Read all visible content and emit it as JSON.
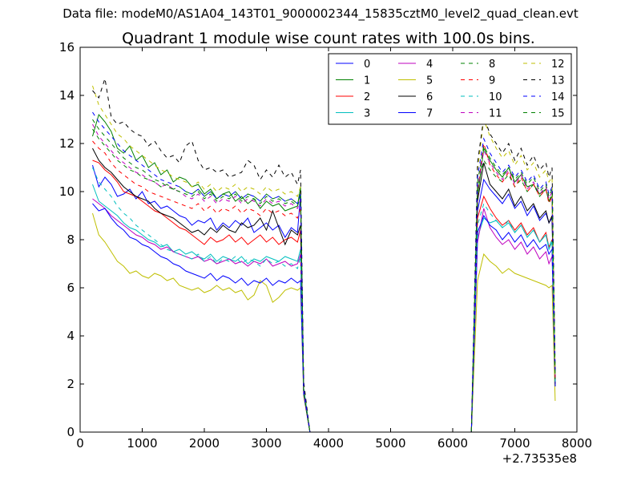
{
  "suptitle": "Data file: modeM0/AS1A04_143T01_9000002344_15835cztM0_level2_quad_clean.evt",
  "chart_data": {
    "type": "line",
    "title": "Quadrant 1 module wise count rates with 100.0s bins.",
    "xlabel": "",
    "ylabel": "",
    "x_offset_label": "+2.73535e8",
    "xlim": [
      0,
      8000
    ],
    "ylim": [
      0,
      16
    ],
    "xticks": [
      0,
      1000,
      2000,
      3000,
      4000,
      5000,
      6000,
      7000,
      8000
    ],
    "yticks": [
      0,
      2,
      4,
      6,
      8,
      10,
      12,
      14,
      16
    ],
    "grid": false,
    "legend_position": "top-right",
    "legend_columns": 4,
    "x": [
      200,
      300,
      400,
      500,
      600,
      700,
      800,
      900,
      1000,
      1100,
      1200,
      1300,
      1400,
      1500,
      1600,
      1700,
      1800,
      1900,
      2000,
      2100,
      2200,
      2300,
      2400,
      2500,
      2600,
      2700,
      2800,
      2900,
      3000,
      3100,
      3200,
      3300,
      3400,
      3500,
      3550,
      3600,
      3700,
      3800,
      4000,
      4500,
      5000,
      5500,
      6000,
      6300,
      6400,
      6500,
      6600,
      6700,
      6800,
      6900,
      7000,
      7100,
      7200,
      7300,
      7400,
      7500,
      7550,
      7600,
      7650
    ],
    "series": [
      {
        "name": "0",
        "color": "#0000ff",
        "dash": "solid",
        "values": [
          11.1,
          10.2,
          10.6,
          10.3,
          9.8,
          9.9,
          10.1,
          9.7,
          10.0,
          9.5,
          9.6,
          9.3,
          9.4,
          9.2,
          9.0,
          8.9,
          8.6,
          8.8,
          8.7,
          8.9,
          8.4,
          8.7,
          8.5,
          8.8,
          8.6,
          8.9,
          8.3,
          8.5,
          8.7,
          8.4,
          8.6,
          8.1,
          8.5,
          8.3,
          9.9,
          1.8,
          0,
          0,
          0,
          0,
          0,
          0,
          0,
          0,
          9.2,
          10.5,
          10.1,
          9.8,
          9.5,
          9.9,
          9.3,
          9.6,
          9.0,
          9.4,
          8.8,
          9.1,
          8.7,
          8.9,
          1.9
        ]
      },
      {
        "name": "1",
        "color": "#008000",
        "dash": "solid",
        "values": [
          12.3,
          13.2,
          12.9,
          12.5,
          11.8,
          11.6,
          11.9,
          11.3,
          11.5,
          11.0,
          11.2,
          10.7,
          10.9,
          10.4,
          10.6,
          10.5,
          10.2,
          10.3,
          9.9,
          10.1,
          9.7,
          9.9,
          10.0,
          9.6,
          9.8,
          9.5,
          9.7,
          9.3,
          9.6,
          9.4,
          9.5,
          9.2,
          9.3,
          9.4,
          10.2,
          1.6,
          0,
          0,
          0,
          0,
          0,
          0,
          0,
          0,
          9.8,
          11.8,
          11.3,
          10.9,
          10.6,
          11.0,
          10.4,
          10.7,
          10.2,
          10.3,
          9.9,
          10.1,
          9.6,
          9.8,
          2.1
        ]
      },
      {
        "name": "2",
        "color": "#ff0000",
        "dash": "solid",
        "values": [
          11.3,
          11.2,
          10.9,
          10.7,
          10.4,
          10.0,
          9.9,
          9.8,
          9.6,
          9.4,
          9.2,
          9.1,
          8.9,
          8.7,
          8.5,
          8.4,
          8.2,
          8.0,
          7.8,
          8.1,
          7.9,
          8.0,
          8.2,
          7.9,
          8.1,
          7.8,
          8.0,
          8.2,
          7.9,
          8.1,
          7.8,
          8.0,
          8.1,
          7.9,
          8.4,
          1.7,
          0,
          0,
          0,
          0,
          0,
          0,
          0,
          0,
          8.9,
          9.8,
          9.3,
          8.9,
          8.6,
          8.8,
          8.4,
          8.7,
          8.2,
          8.5,
          7.9,
          8.3,
          7.7,
          8.0,
          2.0
        ]
      },
      {
        "name": "3",
        "color": "#00bfbf",
        "dash": "solid",
        "values": [
          10.3,
          9.6,
          9.4,
          9.2,
          9.0,
          8.7,
          8.5,
          8.4,
          8.2,
          8.0,
          7.9,
          7.7,
          7.8,
          7.5,
          7.6,
          7.4,
          7.5,
          7.3,
          7.2,
          7.4,
          7.1,
          7.3,
          7.2,
          7.1,
          7.3,
          7.0,
          7.2,
          7.1,
          7.3,
          7.2,
          7.1,
          7.3,
          7.2,
          7.1,
          7.6,
          1.8,
          0,
          0,
          0,
          0,
          0,
          0,
          0,
          0,
          8.1,
          8.9,
          8.7,
          8.8,
          8.5,
          8.7,
          8.3,
          8.6,
          8.1,
          8.4,
          7.9,
          8.2,
          7.6,
          7.9,
          2.2
        ]
      },
      {
        "name": "4",
        "color": "#bf00bf",
        "dash": "solid",
        "values": [
          9.7,
          9.5,
          9.3,
          9.0,
          8.8,
          8.6,
          8.4,
          8.2,
          8.1,
          7.9,
          7.8,
          7.6,
          7.7,
          7.5,
          7.4,
          7.3,
          7.2,
          7.3,
          7.1,
          7.2,
          7.0,
          7.1,
          7.2,
          7.0,
          7.1,
          6.9,
          7.1,
          7.0,
          7.2,
          6.9,
          7.0,
          7.1,
          6.9,
          7.0,
          7.4,
          1.7,
          0,
          0,
          0,
          0,
          0,
          0,
          0,
          0,
          7.9,
          9.3,
          8.5,
          8.1,
          7.8,
          8.0,
          7.6,
          7.9,
          7.4,
          7.7,
          7.2,
          7.5,
          7.0,
          7.3,
          2.1
        ]
      },
      {
        "name": "5",
        "color": "#bfbf00",
        "dash": "solid",
        "values": [
          9.1,
          8.2,
          7.9,
          7.5,
          7.1,
          6.9,
          6.6,
          6.7,
          6.5,
          6.4,
          6.6,
          6.5,
          6.3,
          6.4,
          6.1,
          6.0,
          5.9,
          6.0,
          5.8,
          5.9,
          6.1,
          5.9,
          6.0,
          5.8,
          5.9,
          5.5,
          5.7,
          6.3,
          6.1,
          5.4,
          5.6,
          5.9,
          6.0,
          5.9,
          6.0,
          1.5,
          0,
          0,
          0,
          0,
          0,
          0,
          0,
          0,
          6.3,
          7.4,
          7.1,
          6.9,
          6.6,
          6.8,
          6.6,
          6.5,
          6.4,
          6.3,
          6.2,
          6.1,
          6.0,
          6.1,
          1.3
        ]
      },
      {
        "name": "6",
        "color": "#000000",
        "dash": "solid",
        "values": [
          11.8,
          11.3,
          11.0,
          10.8,
          10.5,
          10.2,
          10.0,
          9.8,
          9.7,
          9.6,
          9.3,
          9.1,
          9.0,
          8.9,
          8.7,
          8.5,
          8.3,
          8.4,
          8.2,
          8.5,
          8.3,
          8.6,
          8.4,
          8.3,
          8.7,
          8.5,
          8.6,
          8.9,
          8.4,
          9.2,
          8.5,
          7.8,
          8.4,
          8.2,
          8.6,
          1.6,
          0,
          0,
          0,
          0,
          0,
          0,
          0,
          0,
          9.6,
          11.2,
          10.3,
          10.0,
          9.7,
          10.1,
          9.4,
          9.8,
          9.2,
          9.5,
          8.9,
          9.2,
          8.7,
          9.0,
          2.0
        ]
      },
      {
        "name": "7",
        "color": "#0000ff",
        "dash": "solid",
        "values": [
          9.5,
          9.2,
          9.3,
          8.9,
          8.6,
          8.4,
          8.1,
          8.0,
          7.8,
          7.7,
          7.5,
          7.3,
          7.2,
          7.0,
          6.9,
          6.7,
          6.6,
          6.5,
          6.4,
          6.6,
          6.3,
          6.5,
          6.4,
          6.2,
          6.4,
          6.1,
          6.3,
          6.2,
          6.4,
          6.1,
          6.3,
          6.2,
          6.4,
          6.2,
          6.3,
          1.6,
          0,
          0,
          0,
          0,
          0,
          0,
          0,
          0,
          8.3,
          9.0,
          8.6,
          8.4,
          8.0,
          8.3,
          7.9,
          8.2,
          7.7,
          8.0,
          7.6,
          7.8,
          7.4,
          7.6,
          1.9
        ]
      },
      {
        "name": "8",
        "color": "#008000",
        "dash": "dashed",
        "values": [
          12.6,
          12.2,
          11.9,
          11.6,
          11.3,
          11.1,
          10.9,
          10.8,
          10.6,
          10.5,
          10.4,
          10.2,
          10.3,
          10.1,
          10.2,
          10.0,
          9.9,
          10.1,
          9.8,
          10.0,
          9.7,
          9.9,
          9.8,
          10.0,
          9.7,
          9.9,
          9.8,
          9.6,
          9.9,
          9.7,
          9.8,
          9.6,
          9.7,
          9.5,
          9.9,
          1.8,
          0,
          0,
          0,
          0,
          0,
          0,
          0,
          0,
          10.2,
          11.3,
          10.9,
          10.6,
          10.4,
          10.7,
          10.2,
          10.5,
          10.0,
          10.3,
          9.8,
          10.1,
          9.6,
          9.9,
          2.3
        ]
      },
      {
        "name": "9",
        "color": "#ff0000",
        "dash": "dashed",
        "values": [
          12.1,
          11.8,
          11.6,
          11.2,
          10.9,
          10.7,
          10.5,
          10.3,
          10.2,
          10.0,
          9.9,
          9.8,
          9.7,
          9.6,
          9.5,
          9.4,
          9.3,
          9.5,
          9.2,
          9.4,
          9.1,
          9.3,
          9.2,
          9.4,
          9.1,
          9.3,
          9.2,
          9.0,
          9.3,
          9.1,
          9.2,
          9.0,
          9.1,
          8.9,
          9.3,
          1.7,
          0,
          0,
          0,
          0,
          0,
          0,
          0,
          0,
          10.0,
          12.0,
          11.1,
          10.7,
          10.4,
          10.8,
          10.2,
          10.6,
          10.0,
          10.3,
          9.8,
          10.1,
          9.5,
          9.8,
          2.2
        ]
      },
      {
        "name": "10",
        "color": "#00bfbf",
        "dash": "dashed",
        "values": [
          11.0,
          10.4,
          10.1,
          9.8,
          9.4,
          9.1,
          8.9,
          8.6,
          8.4,
          8.2,
          8.0,
          7.8,
          7.6,
          7.5,
          7.4,
          7.3,
          7.2,
          7.4,
          7.1,
          7.3,
          7.0,
          7.2,
          7.1,
          7.3,
          7.0,
          7.2,
          7.1,
          6.9,
          7.2,
          7.0,
          7.1,
          6.9,
          7.0,
          6.8,
          7.3,
          1.8,
          0,
          0,
          0,
          0,
          0,
          0,
          0,
          0,
          8.6,
          9.5,
          9.1,
          8.8,
          8.5,
          8.8,
          8.3,
          8.6,
          8.1,
          8.4,
          7.9,
          8.2,
          7.7,
          8.0,
          2.1
        ]
      },
      {
        "name": "11",
        "color": "#bf00bf",
        "dash": "dashed",
        "values": [
          12.8,
          12.3,
          12.0,
          11.7,
          11.4,
          11.2,
          11.0,
          10.8,
          10.7,
          10.5,
          10.4,
          10.2,
          10.3,
          10.1,
          10.0,
          9.8,
          9.7,
          9.9,
          9.6,
          9.8,
          9.5,
          9.7,
          9.6,
          9.8,
          9.5,
          9.7,
          9.6,
          9.4,
          9.7,
          9.5,
          9.6,
          9.4,
          9.5,
          9.3,
          9.7,
          1.7,
          0,
          0,
          0,
          0,
          0,
          0,
          0,
          0,
          10.1,
          11.7,
          11.2,
          10.8,
          10.5,
          10.9,
          10.3,
          10.7,
          10.1,
          10.4,
          9.9,
          10.2,
          9.7,
          10.0,
          2.3
        ]
      },
      {
        "name": "12",
        "color": "#bfbf00",
        "dash": "dashed",
        "values": [
          14.4,
          13.6,
          13.2,
          12.8,
          12.4,
          12.2,
          11.9,
          11.7,
          11.5,
          11.3,
          11.1,
          10.9,
          10.8,
          10.6,
          10.5,
          10.4,
          10.2,
          10.4,
          10.1,
          10.3,
          10.0,
          10.2,
          10.1,
          10.3,
          10.0,
          10.2,
          10.1,
          9.9,
          10.2,
          10.0,
          10.1,
          9.9,
          10.0,
          9.8,
          10.2,
          1.9,
          0,
          0,
          0,
          0,
          0,
          0,
          0,
          0,
          10.9,
          13.0,
          12.3,
          11.8,
          11.4,
          11.7,
          11.1,
          11.5,
          10.9,
          11.2,
          10.6,
          10.9,
          10.4,
          10.6,
          2.4
        ]
      },
      {
        "name": "13",
        "color": "#000000",
        "dash": "dashed",
        "values": [
          14.2,
          13.9,
          14.7,
          13.1,
          12.8,
          12.9,
          12.6,
          12.4,
          12.3,
          11.9,
          12.1,
          11.7,
          11.4,
          11.5,
          11.2,
          11.9,
          12.1,
          11.3,
          10.9,
          11.0,
          10.8,
          10.9,
          10.6,
          10.7,
          10.8,
          11.3,
          11.1,
          10.5,
          10.9,
          10.6,
          11.1,
          10.6,
          10.8,
          10.3,
          10.9,
          2.1,
          0,
          0,
          0,
          0,
          0,
          0,
          0,
          0,
          11.2,
          13.1,
          12.4,
          12.0,
          11.6,
          12.0,
          11.3,
          11.8,
          11.1,
          11.5,
          10.9,
          11.2,
          10.6,
          11.0,
          2.6
        ]
      },
      {
        "name": "14",
        "color": "#0000ff",
        "dash": "dashed",
        "values": [
          13.3,
          12.9,
          12.6,
          12.3,
          12.0,
          11.7,
          11.5,
          11.3,
          11.1,
          10.9,
          10.7,
          10.5,
          10.4,
          10.3,
          10.2,
          10.0,
          9.9,
          10.1,
          9.8,
          10.0,
          9.7,
          9.9,
          9.8,
          10.0,
          9.7,
          9.9,
          9.8,
          9.6,
          9.9,
          9.7,
          9.8,
          9.6,
          9.7,
          9.5,
          9.9,
          1.8,
          0,
          0,
          0,
          0,
          0,
          0,
          0,
          0,
          10.6,
          12.2,
          11.6,
          11.2,
          10.8,
          11.1,
          10.6,
          10.9,
          10.4,
          10.7,
          10.1,
          10.4,
          9.9,
          10.2,
          2.4
        ]
      },
      {
        "name": "15",
        "color": "#008000",
        "dash": "dashed",
        "values": [
          13.0,
          12.6,
          12.3,
          12.0,
          11.7,
          11.4,
          11.2,
          11.0,
          10.9,
          10.7,
          10.5,
          10.4,
          10.2,
          10.1,
          10.0,
          9.9,
          9.8,
          10.0,
          9.7,
          9.9,
          9.6,
          9.8,
          9.7,
          9.9,
          9.6,
          9.8,
          9.7,
          9.5,
          9.8,
          9.6,
          9.7,
          9.5,
          9.6,
          9.4,
          9.8,
          1.7,
          0,
          0,
          0,
          0,
          0,
          0,
          0,
          0,
          10.4,
          11.9,
          11.4,
          11.0,
          10.7,
          11.0,
          10.5,
          10.8,
          10.3,
          10.6,
          10.0,
          10.3,
          9.8,
          10.1,
          2.2
        ]
      }
    ]
  }
}
